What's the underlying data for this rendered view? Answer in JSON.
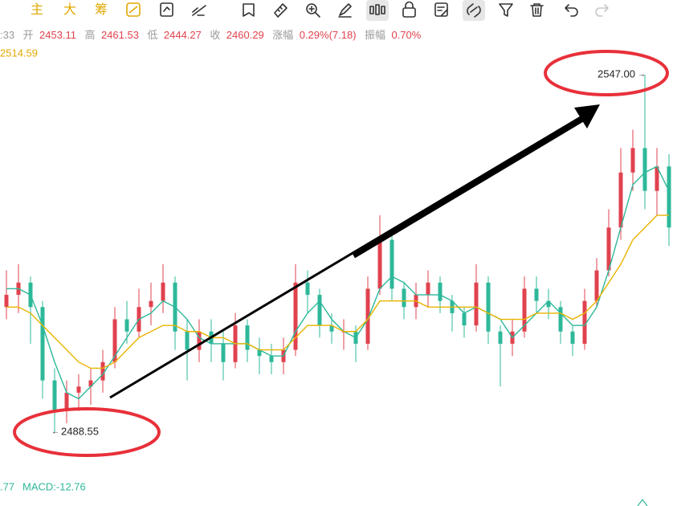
{
  "toolbar": {
    "buttons": [
      "主",
      "大",
      "筹"
    ]
  },
  "info": {
    "time": ":33",
    "open_label": "开",
    "open": "2453.11",
    "high_label": "高",
    "high": "2461.53",
    "low_label": "低",
    "low": "2444.27",
    "close_label": "收",
    "close": "2460.29",
    "change_label": "涨幅",
    "change": "0.29%(7.18)",
    "amplitude_label": "振幅",
    "amplitude": "0.70%",
    "ma": "2514.59"
  },
  "macd": {
    "prefix": ".77",
    "label": "MACD:-12.76"
  },
  "chart_data": {
    "type": "candlestick",
    "up_color": "#e0424e",
    "down_color": "#2eb89a",
    "candles": [
      [
        2509,
        2515,
        2507,
        2511
      ],
      [
        2511,
        2516,
        2508,
        2513
      ],
      [
        2513,
        2514,
        2503,
        2509
      ],
      [
        2509,
        2510,
        2494,
        2497
      ],
      [
        2497,
        2499,
        2488.55,
        2492
      ],
      [
        2492,
        2497,
        2490,
        2495
      ],
      [
        2495,
        2498,
        2492,
        2496
      ],
      [
        2496,
        2499,
        2493,
        2497
      ],
      [
        2497,
        2502,
        2495,
        2500
      ],
      [
        2500,
        2509,
        2499,
        2507
      ],
      [
        2507,
        2510,
        2503,
        2505
      ],
      [
        2505,
        2512,
        2504,
        2509
      ],
      [
        2509,
        2513,
        2506,
        2510
      ],
      [
        2510,
        2516,
        2508,
        2513
      ],
      [
        2513,
        2514,
        2502,
        2505
      ],
      [
        2505,
        2507,
        2497,
        2502
      ],
      [
        2502,
        2507,
        2500,
        2505
      ],
      [
        2505,
        2507,
        2500,
        2503
      ],
      [
        2503,
        2505,
        2497,
        2500
      ],
      [
        2500,
        2508,
        2499,
        2506
      ],
      [
        2506,
        2507,
        2500,
        2502
      ],
      [
        2502,
        2504,
        2498,
        2501
      ],
      [
        2501,
        2503,
        2498,
        2500
      ],
      [
        2500,
        2504,
        2498,
        2502
      ],
      [
        2502,
        2516,
        2501,
        2513
      ],
      [
        2513,
        2515,
        2508,
        2511
      ],
      [
        2511,
        2512,
        2504,
        2506
      ],
      [
        2506,
        2508,
        2503,
        2505
      ],
      [
        2505,
        2507,
        2502,
        2505
      ],
      [
        2505,
        2506,
        2500,
        2503
      ],
      [
        2503,
        2514,
        2502,
        2512
      ],
      [
        2512,
        2524,
        2511,
        2520
      ],
      [
        2520,
        2521,
        2510,
        2512
      ],
      [
        2512,
        2513,
        2507,
        2509
      ],
      [
        2509,
        2513,
        2507,
        2511
      ],
      [
        2511,
        2515,
        2509,
        2513
      ],
      [
        2513,
        2514,
        2508,
        2510
      ],
      [
        2510,
        2511,
        2505,
        2508
      ],
      [
        2508,
        2509,
        2504,
        2506
      ],
      [
        2506,
        2516,
        2505,
        2513
      ],
      [
        2513,
        2514,
        2503,
        2505
      ],
      [
        2505,
        2506,
        2496,
        2503
      ],
      [
        2503,
        2507,
        2501,
        2505
      ],
      [
        2505,
        2514,
        2504,
        2512
      ],
      [
        2512,
        2514,
        2508,
        2510
      ],
      [
        2510,
        2512,
        2507,
        2509
      ],
      [
        2509,
        2510,
        2503,
        2505
      ],
      [
        2505,
        2506,
        2501,
        2503
      ],
      [
        2503,
        2512,
        2502,
        2510
      ],
      [
        2510,
        2517,
        2509,
        2515
      ],
      [
        2515,
        2525,
        2514,
        2522
      ],
      [
        2522,
        2535,
        2520,
        2531
      ],
      [
        2531,
        2538,
        2528,
        2535
      ],
      [
        2535,
        2547,
        2525,
        2528
      ],
      [
        2528,
        2535,
        2524,
        2532
      ],
      [
        2532,
        2534,
        2519,
        2522
      ]
    ],
    "series": [
      {
        "name": "MA fast",
        "color": "#2eb89a",
        "values": [
          2512,
          2512,
          2511,
          2506,
          2500,
          2495,
          2494,
          2496,
          2498,
          2501,
          2504,
          2507,
          2508,
          2510,
          2509,
          2507,
          2504,
          2503,
          2503,
          2503,
          2503,
          2502,
          2501,
          2501,
          2505,
          2508,
          2510,
          2507,
          2505,
          2504,
          2507,
          2512,
          2514,
          2513,
          2511,
          2511,
          2511,
          2510,
          2508,
          2509,
          2508,
          2507,
          2504,
          2506,
          2508,
          2510,
          2508,
          2506,
          2506,
          2509,
          2515,
          2522,
          2529,
          2531,
          2532,
          2528
        ]
      },
      {
        "name": "MA slow",
        "color": "#e8b400",
        "values": [
          2509,
          2509,
          2508,
          2506,
          2504,
          2502,
          2500,
          2499,
          2499,
          2500,
          2502,
          2504,
          2505,
          2506,
          2506,
          2505,
          2505,
          2504,
          2504,
          2503,
          2503,
          2502,
          2502,
          2502,
          2504,
          2506,
          2506,
          2506,
          2505,
          2505,
          2507,
          2510,
          2510,
          2510,
          2510,
          2509,
          2509,
          2509,
          2509,
          2509,
          2508,
          2507,
          2507,
          2507,
          2508,
          2508,
          2508,
          2507,
          2508,
          2510,
          2513,
          2516,
          2520,
          2522,
          2524,
          2524
        ]
      }
    ],
    "annotations": {
      "high": {
        "value": 2547,
        "label": "2547.00",
        "arrow": "→"
      },
      "low": {
        "value": 2488.55,
        "label": "2488.55",
        "arrow": "←"
      }
    }
  }
}
